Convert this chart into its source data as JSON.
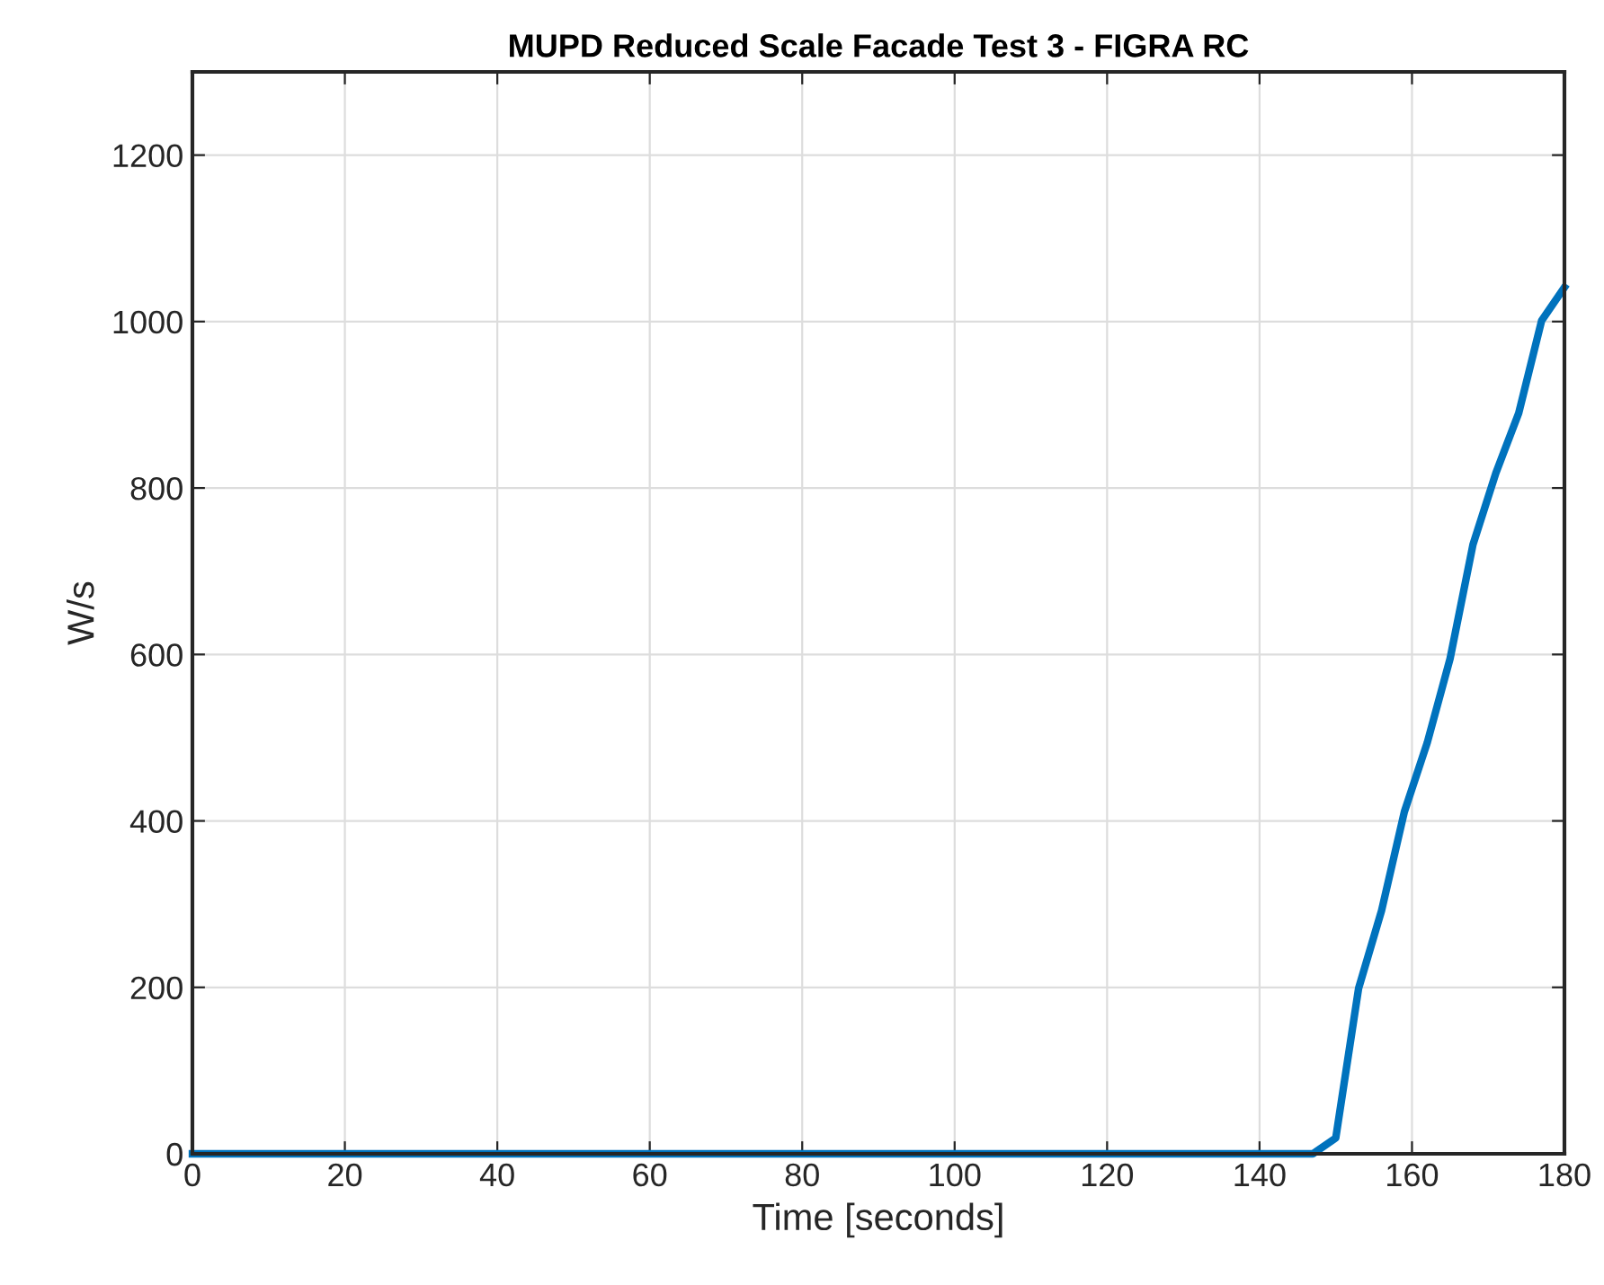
{
  "chart_data": {
    "type": "line",
    "title": "MUPD Reduced Scale Facade Test 3 - FIGRA RC",
    "xlabel": "Time [seconds]",
    "ylabel": "W/s",
    "series": [
      {
        "color": "#0072bd",
        "x": [
          0,
          147,
          150,
          153,
          156,
          159,
          162,
          165,
          168,
          171,
          174,
          177,
          180
        ],
        "values": [
          0,
          0,
          19,
          199,
          292,
          411,
          494,
          595,
          732,
          818,
          890,
          1001,
          1041
        ]
      }
    ],
    "xlim": [
      0,
      180
    ],
    "ylim": [
      0,
      1300
    ],
    "xticks": [
      0,
      20,
      40,
      60,
      80,
      100,
      120,
      140,
      160,
      180
    ],
    "yticks": [
      0,
      200,
      400,
      600,
      800,
      1000,
      1200
    ],
    "grid": true,
    "marker": "none",
    "line_style": "solid"
  }
}
